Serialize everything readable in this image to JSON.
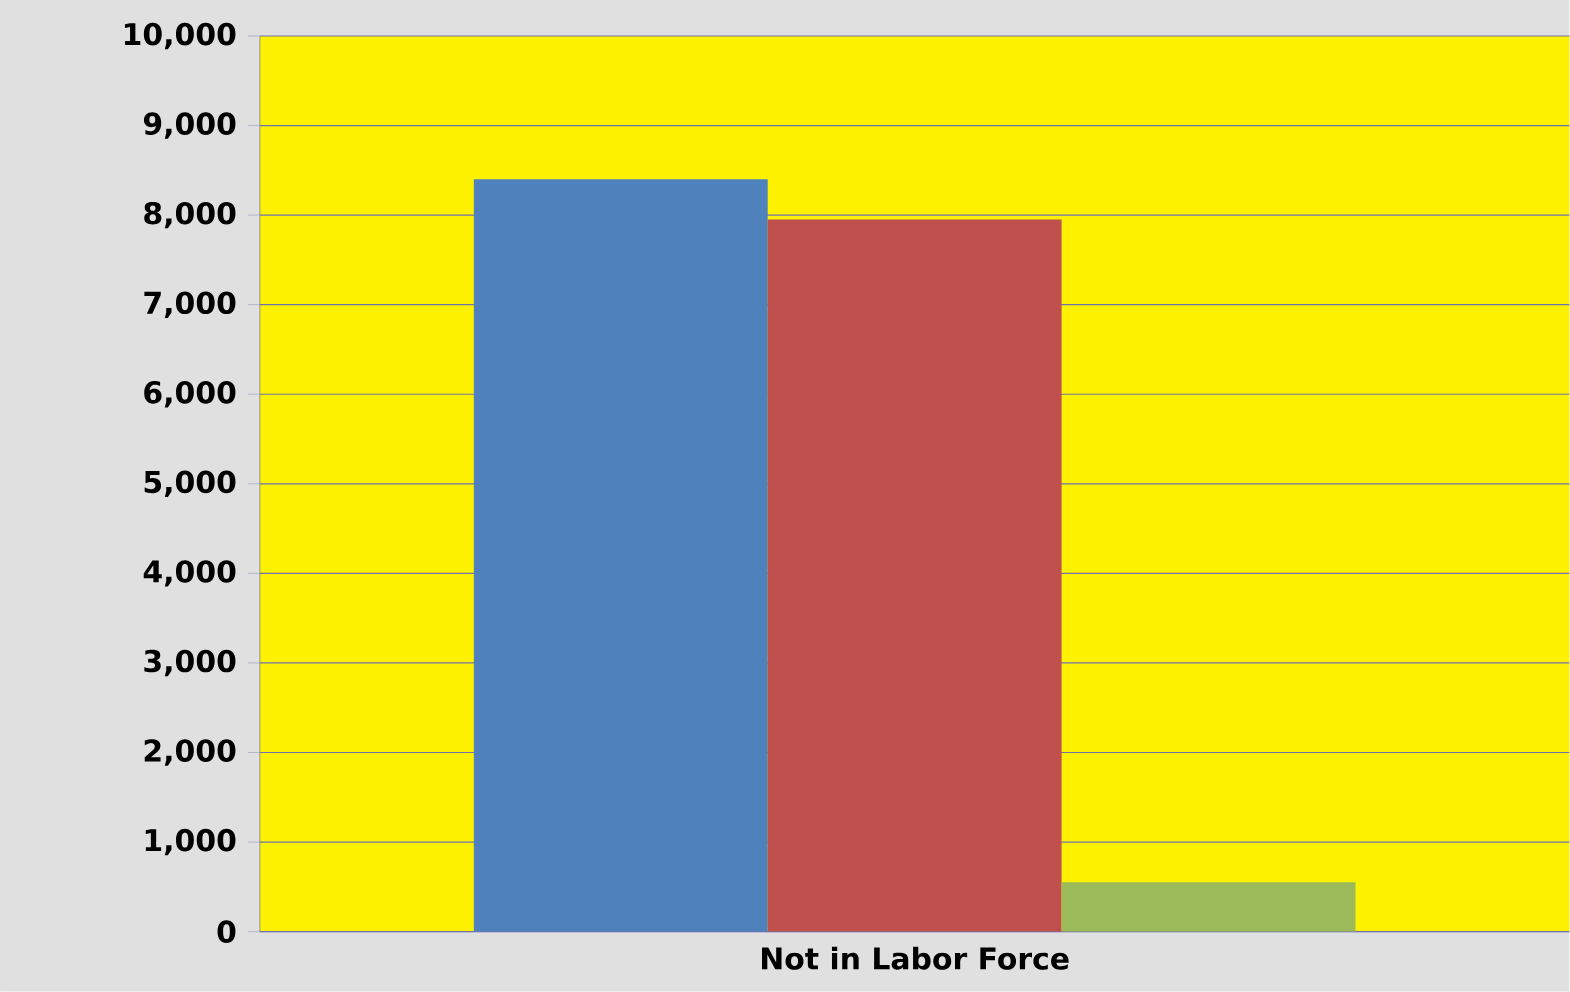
{
  "chart_data": {
    "type": "bar",
    "categories": [
      "Not in Labor Force"
    ],
    "series": [
      {
        "color": "#4f81bd",
        "values": [
          8400
        ]
      },
      {
        "color": "#c0504d",
        "values": [
          7950
        ]
      },
      {
        "color": "#9bbb59",
        "values": [
          550
        ]
      }
    ],
    "ylim": [
      0,
      10000
    ],
    "yticks": [
      {
        "value": 0,
        "label": "0"
      },
      {
        "value": 1000,
        "label": "1,000"
      },
      {
        "value": 2000,
        "label": "2,000"
      },
      {
        "value": 3000,
        "label": "3,000"
      },
      {
        "value": 4000,
        "label": "4,000"
      },
      {
        "value": 5000,
        "label": "5,000"
      },
      {
        "value": 6000,
        "label": "6,000"
      },
      {
        "value": 7000,
        "label": "7,000"
      },
      {
        "value": 8000,
        "label": "8,000"
      },
      {
        "value": 9000,
        "label": "9,000"
      },
      {
        "value": 10000,
        "label": "10,000"
      }
    ],
    "grid": "y"
  }
}
